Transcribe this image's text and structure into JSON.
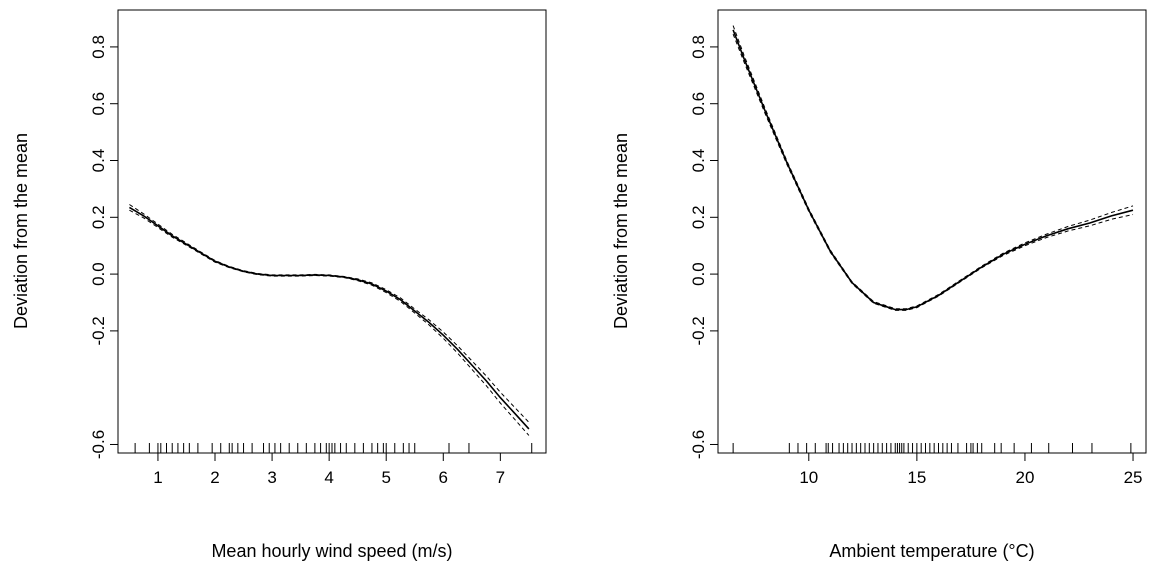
{
  "chart_data": [
    {
      "type": "line",
      "title": "",
      "xlabel": "Mean hourly wind speed (m/s)",
      "ylabel": "Deviation from the mean",
      "xlim": [
        0.3,
        7.8
      ],
      "ylim": [
        -0.63,
        0.93
      ],
      "xticks": [
        1,
        2,
        3,
        4,
        5,
        6,
        7
      ],
      "yticks": [
        -0.6,
        -0.2,
        0.0,
        0.2,
        0.4,
        0.6,
        0.8
      ],
      "ytick_labels": [
        "-0.6",
        "-0.2",
        "0.0",
        "0.2",
        "0.4",
        "0.6",
        "0.8"
      ],
      "grid": false,
      "series": [
        {
          "role": "fit",
          "x": [
            0.5,
            0.75,
            1.0,
            1.25,
            1.5,
            1.75,
            2.0,
            2.25,
            2.5,
            2.75,
            3.0,
            3.25,
            3.5,
            3.75,
            4.0,
            4.25,
            4.5,
            4.75,
            5.0,
            5.25,
            5.5,
            5.75,
            6.0,
            6.25,
            6.5,
            6.75,
            7.0,
            7.25,
            7.5
          ],
          "y": [
            0.235,
            0.205,
            0.17,
            0.135,
            0.105,
            0.075,
            0.045,
            0.025,
            0.01,
            0.0,
            -0.005,
            -0.005,
            -0.005,
            -0.003,
            -0.005,
            -0.01,
            -0.02,
            -0.035,
            -0.06,
            -0.09,
            -0.13,
            -0.17,
            -0.215,
            -0.265,
            -0.32,
            -0.375,
            -0.435,
            -0.49,
            -0.545
          ]
        },
        {
          "role": "upper-ci",
          "x": [
            0.5,
            0.75,
            1.0,
            1.25,
            1.5,
            1.75,
            2.0,
            2.25,
            2.5,
            2.75,
            3.0,
            3.25,
            3.5,
            3.75,
            4.0,
            4.25,
            4.5,
            4.75,
            5.0,
            5.25,
            5.5,
            5.75,
            6.0,
            6.25,
            6.5,
            6.75,
            7.0,
            7.25,
            7.5
          ],
          "y": [
            0.245,
            0.212,
            0.176,
            0.14,
            0.109,
            0.078,
            0.048,
            0.027,
            0.012,
            0.002,
            -0.003,
            -0.003,
            -0.003,
            -0.001,
            -0.003,
            -0.008,
            -0.017,
            -0.031,
            -0.055,
            -0.084,
            -0.123,
            -0.161,
            -0.204,
            -0.252,
            -0.305,
            -0.358,
            -0.416,
            -0.469,
            -0.522
          ]
        },
        {
          "role": "lower-ci",
          "x": [
            0.5,
            0.75,
            1.0,
            1.25,
            1.5,
            1.75,
            2.0,
            2.25,
            2.5,
            2.75,
            3.0,
            3.25,
            3.5,
            3.75,
            4.0,
            4.25,
            4.5,
            4.75,
            5.0,
            5.25,
            5.5,
            5.75,
            6.0,
            6.25,
            6.5,
            6.75,
            7.0,
            7.25,
            7.5
          ],
          "y": [
            0.225,
            0.198,
            0.164,
            0.13,
            0.101,
            0.072,
            0.042,
            0.023,
            0.008,
            -0.002,
            -0.007,
            -0.007,
            -0.007,
            -0.005,
            -0.007,
            -0.012,
            -0.023,
            -0.039,
            -0.065,
            -0.096,
            -0.137,
            -0.179,
            -0.226,
            -0.278,
            -0.335,
            -0.392,
            -0.454,
            -0.511,
            -0.568
          ]
        }
      ],
      "rug": [
        0.6,
        0.85,
        1.0,
        1.05,
        1.15,
        1.25,
        1.35,
        1.45,
        1.55,
        1.7,
        1.95,
        2.1,
        2.25,
        2.3,
        2.4,
        2.5,
        2.65,
        2.85,
        2.95,
        3.05,
        3.15,
        3.3,
        3.45,
        3.6,
        3.75,
        3.85,
        3.95,
        4.0,
        4.05,
        4.1,
        4.2,
        4.3,
        4.45,
        4.6,
        4.75,
        4.85,
        4.95,
        5.0,
        5.15,
        5.3,
        5.4,
        5.5,
        6.1,
        6.45,
        7.55
      ]
    },
    {
      "type": "line",
      "title": "",
      "xlabel": "Ambient temperature (°C)",
      "ylabel": "Deviation from the mean",
      "xlim": [
        5.8,
        25.6
      ],
      "ylim": [
        -0.63,
        0.93
      ],
      "xticks": [
        10,
        15,
        20,
        25
      ],
      "yticks": [
        -0.6,
        -0.2,
        0.0,
        0.2,
        0.4,
        0.6,
        0.8
      ],
      "ytick_labels": [
        "-0.6",
        "-0.2",
        "0.0",
        "0.2",
        "0.4",
        "0.6",
        "0.8"
      ],
      "grid": false,
      "series": [
        {
          "role": "fit",
          "x": [
            6.5,
            7.0,
            8.0,
            9.0,
            10.0,
            11.0,
            12.0,
            13.0,
            14.0,
            14.5,
            15.0,
            16.0,
            17.0,
            18.0,
            19.0,
            20.0,
            21.0,
            22.0,
            23.0,
            24.0,
            25.0
          ],
          "y": [
            0.86,
            0.76,
            0.57,
            0.39,
            0.225,
            0.08,
            -0.03,
            -0.1,
            -0.125,
            -0.125,
            -0.115,
            -0.075,
            -0.025,
            0.025,
            0.07,
            0.105,
            0.135,
            0.16,
            0.18,
            0.205,
            0.225
          ]
        },
        {
          "role": "upper-ci",
          "x": [
            6.5,
            7.0,
            8.0,
            9.0,
            10.0,
            11.0,
            12.0,
            13.0,
            14.0,
            14.5,
            15.0,
            16.0,
            17.0,
            18.0,
            19.0,
            20.0,
            21.0,
            22.0,
            23.0,
            24.0,
            25.0
          ],
          "y": [
            0.875,
            0.772,
            0.579,
            0.396,
            0.23,
            0.084,
            -0.027,
            -0.097,
            -0.122,
            -0.122,
            -0.112,
            -0.072,
            -0.022,
            0.028,
            0.074,
            0.11,
            0.141,
            0.168,
            0.19,
            0.217,
            0.24
          ]
        },
        {
          "role": "lower-ci",
          "x": [
            6.5,
            7.0,
            8.0,
            9.0,
            10.0,
            11.0,
            12.0,
            13.0,
            14.0,
            14.5,
            15.0,
            16.0,
            17.0,
            18.0,
            19.0,
            20.0,
            21.0,
            22.0,
            23.0,
            24.0,
            25.0
          ],
          "y": [
            0.845,
            0.748,
            0.561,
            0.384,
            0.22,
            0.076,
            -0.033,
            -0.103,
            -0.128,
            -0.128,
            -0.118,
            -0.078,
            -0.028,
            0.022,
            0.066,
            0.1,
            0.129,
            0.152,
            0.17,
            0.193,
            0.21
          ]
        }
      ],
      "rug": [
        6.5,
        9.1,
        9.5,
        9.9,
        10.3,
        10.8,
        10.9,
        11.1,
        11.4,
        11.6,
        11.8,
        12.0,
        12.2,
        12.4,
        12.6,
        12.8,
        13.0,
        13.2,
        13.4,
        13.6,
        13.8,
        14.0,
        14.1,
        14.2,
        14.3,
        14.4,
        14.6,
        14.8,
        15.0,
        15.2,
        15.4,
        15.6,
        15.8,
        16.0,
        16.2,
        16.4,
        16.6,
        16.9,
        17.3,
        17.5,
        17.6,
        17.8,
        18.0,
        18.6,
        18.9,
        19.5,
        20.3,
        21.1,
        22.2,
        23.1,
        24.9
      ]
    }
  ]
}
